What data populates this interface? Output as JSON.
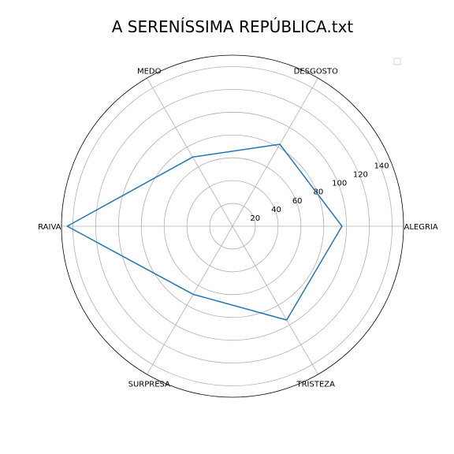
{
  "chart_data": {
    "type": "radar",
    "title": "A SERENÍSSIMA REPÚBLICA.txt",
    "categories": [
      "ALEGRIA",
      "DESGOSTO",
      "MEDO",
      "RAIVA",
      "SURPRESA",
      "TRISTEZA"
    ],
    "series": [
      {
        "values": [
          96,
          83,
          70,
          145,
          69,
          95
        ],
        "color": "#1f77b4"
      }
    ],
    "rlim": [
      0,
      150
    ],
    "rticks": [
      20,
      40,
      60,
      80,
      100,
      120,
      140
    ],
    "grid": true,
    "legend": "top-right"
  }
}
